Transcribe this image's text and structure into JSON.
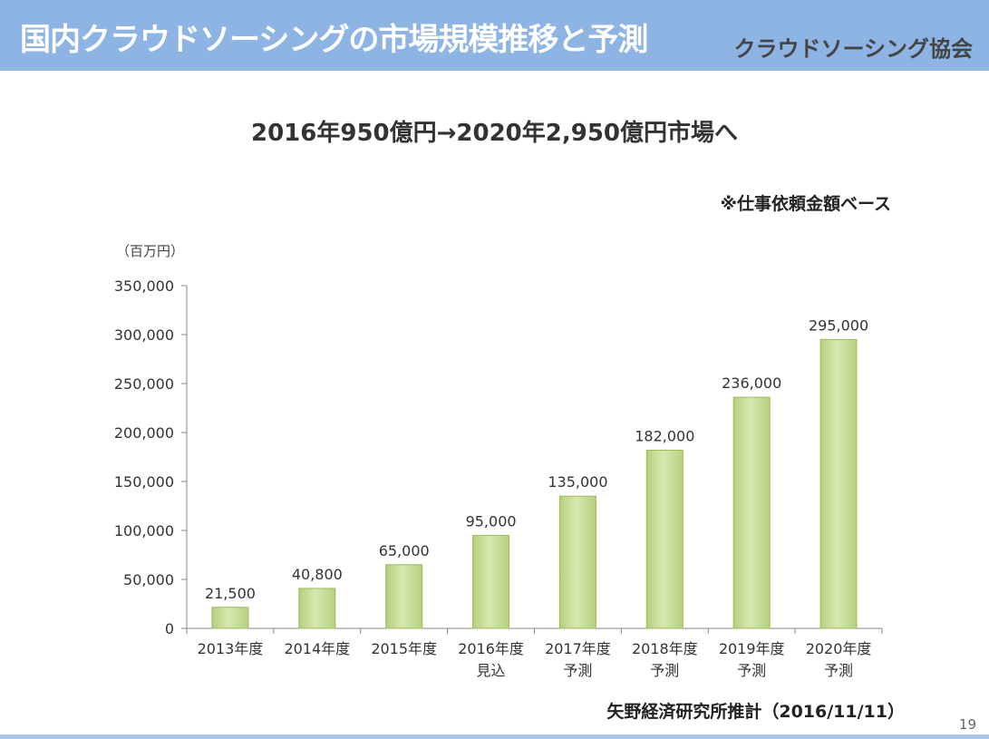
{
  "header": {
    "title": "国内クラウドソーシングの市場規模推移と予測",
    "org": "クラウドソーシング協会"
  },
  "subtitle": "2016年950億円→2020年2,950億円市場へ",
  "note": "※仕事依頼金額ベース",
  "source": "矢野経済研究所推計（2016/11/11）",
  "page_number": "19",
  "chart_data": {
    "type": "bar",
    "ylabel": "（百万円）",
    "categories": [
      [
        "2013年度"
      ],
      [
        "2014年度"
      ],
      [
        "2015年度"
      ],
      [
        "2016年度",
        "見込"
      ],
      [
        "2017年度",
        "予測"
      ],
      [
        "2018年度",
        "予測"
      ],
      [
        "2019年度",
        "予測"
      ],
      [
        "2020年度",
        "予測"
      ]
    ],
    "values": [
      21500,
      40800,
      65000,
      95000,
      135000,
      182000,
      236000,
      295000
    ],
    "value_labels": [
      "21,500",
      "40,800",
      "65,000",
      "95,000",
      "135,000",
      "182,000",
      "236,000",
      "295,000"
    ],
    "ylim": [
      0,
      350000
    ],
    "yticks": [
      0,
      50000,
      100000,
      150000,
      200000,
      250000,
      300000,
      350000
    ],
    "ytick_labels": [
      "0",
      "50,000",
      "100,000",
      "150,000",
      "200,000",
      "250,000",
      "300,000",
      "350,000"
    ],
    "grid": false,
    "legend": "none",
    "colors": {
      "bar_fill": "#c6dc94",
      "bar_edge": "#9bbb59",
      "axis": "#888888"
    }
  }
}
